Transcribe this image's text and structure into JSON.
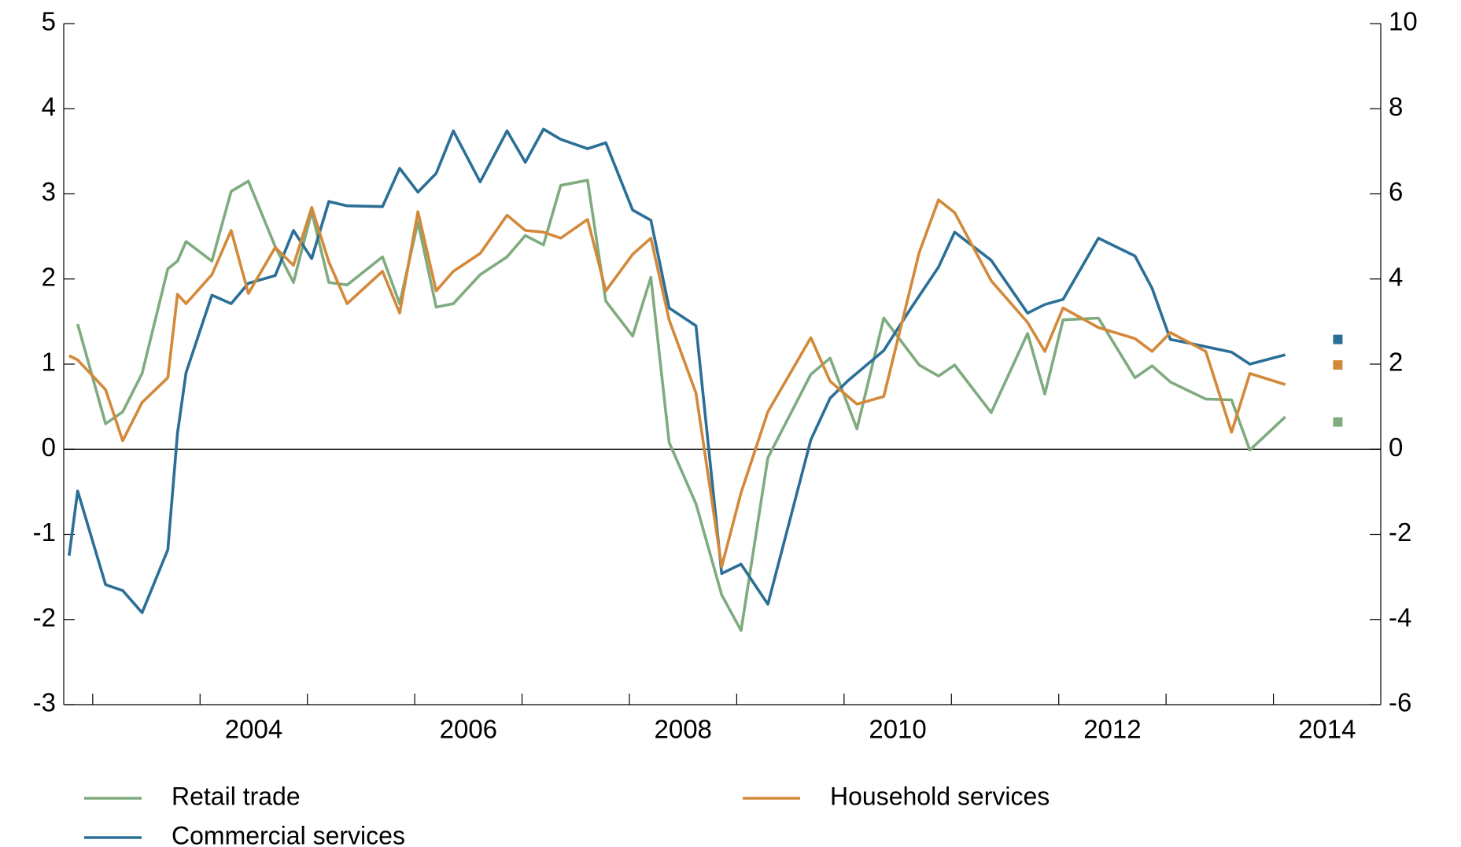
{
  "chart_data": {
    "type": "line",
    "xlim": [
      2002.73,
      2015
    ],
    "xticks": [
      2003,
      2004,
      2005,
      2006,
      2007,
      2008,
      2009,
      2010,
      2011,
      2012,
      2013,
      2014
    ],
    "xlabels": [
      {
        "value": 2004.5,
        "label": "2004"
      },
      {
        "value": 2006.5,
        "label": "2006"
      },
      {
        "value": 2008.5,
        "label": "2008"
      },
      {
        "value": 2010.5,
        "label": "2010"
      },
      {
        "value": 2012.5,
        "label": "2012"
      },
      {
        "value": 2014.5,
        "label": "2014"
      }
    ],
    "ylim": [
      -3,
      5
    ],
    "yticks": [
      -3,
      -2,
      -1,
      0,
      1,
      2,
      3,
      4,
      5
    ],
    "y2lim": [
      -6,
      10
    ],
    "y2ticks": [
      -6,
      -4,
      -2,
      0,
      2,
      4,
      6,
      8,
      10
    ],
    "series": [
      {
        "name": "Retail trade",
        "color": "#7fab7f",
        "x": [
          2002.86,
          2003.12,
          2003.28,
          2003.46,
          2003.7,
          2003.79,
          2003.87,
          2004.11,
          2004.29,
          2004.45,
          2004.7,
          2004.87,
          2005.04,
          2005.2,
          2005.37,
          2005.7,
          2005.86,
          2006.03,
          2006.2,
          2006.36,
          2006.61,
          2006.86,
          2007.03,
          2007.2,
          2007.36,
          2007.61,
          2007.78,
          2008.03,
          2008.2,
          2008.37,
          2008.62,
          2008.86,
          2009.04,
          2009.29,
          2009.69,
          2009.87,
          2010.12,
          2010.37,
          2010.7,
          2010.88,
          2011.03,
          2011.37,
          2011.71,
          2011.87,
          2012.04,
          2012.37,
          2012.71,
          2012.87,
          2013.04,
          2013.37,
          2013.61,
          2013.78,
          2014.11
        ],
        "values": [
          1.47,
          0.3,
          0.44,
          0.89,
          2.12,
          2.21,
          2.44,
          2.21,
          3.03,
          3.15,
          2.38,
          1.96,
          2.79,
          1.96,
          1.93,
          2.26,
          1.71,
          2.67,
          1.67,
          1.71,
          2.05,
          2.26,
          2.51,
          2.4,
          3.1,
          3.16,
          1.74,
          1.33,
          2.02,
          0.08,
          -0.64,
          -1.71,
          -2.13,
          -0.1,
          0.88,
          1.07,
          0.24,
          1.54,
          0.99,
          0.86,
          0.99,
          0.43,
          1.36,
          0.65,
          1.52,
          1.54,
          0.84,
          0.98,
          0.79,
          0.59,
          0.58,
          -0.01,
          0.38
        ]
      },
      {
        "name": "Commercial services",
        "color": "#2b6f97",
        "x": [
          2002.78,
          2002.86,
          2003.12,
          2003.28,
          2003.46,
          2003.7,
          2003.79,
          2003.87,
          2004.11,
          2004.29,
          2004.45,
          2004.7,
          2004.87,
          2005.04,
          2005.2,
          2005.37,
          2005.7,
          2005.86,
          2006.03,
          2006.2,
          2006.36,
          2006.61,
          2006.86,
          2007.03,
          2007.2,
          2007.36,
          2007.61,
          2007.78,
          2008.03,
          2008.2,
          2008.37,
          2008.62,
          2008.86,
          2009.04,
          2009.29,
          2009.69,
          2009.87,
          2010.04,
          2010.37,
          2010.62,
          2010.88,
          2011.03,
          2011.37,
          2011.71,
          2011.87,
          2012.04,
          2012.37,
          2012.71,
          2012.87,
          2013.04,
          2013.2,
          2013.61,
          2013.78,
          2014.11
        ],
        "values": [
          -1.25,
          -0.49,
          -1.59,
          -1.66,
          -1.92,
          -1.18,
          0.19,
          0.9,
          1.81,
          1.71,
          1.95,
          2.04,
          2.57,
          2.24,
          2.91,
          2.86,
          2.85,
          3.3,
          3.02,
          3.24,
          3.74,
          3.14,
          3.74,
          3.37,
          3.76,
          3.64,
          3.53,
          3.6,
          2.81,
          2.69,
          1.66,
          1.45,
          -1.46,
          -1.35,
          -1.82,
          0.11,
          0.6,
          0.81,
          1.16,
          1.65,
          2.14,
          2.55,
          2.22,
          1.6,
          1.7,
          1.76,
          2.48,
          2.27,
          1.89,
          1.29,
          1.25,
          1.14,
          1.0,
          1.11
        ]
      },
      {
        "name": "Household services",
        "color": "#d3893a",
        "x": [
          2002.78,
          2002.86,
          2003.12,
          2003.28,
          2003.46,
          2003.7,
          2003.79,
          2003.87,
          2004.11,
          2004.29,
          2004.45,
          2004.7,
          2004.87,
          2005.04,
          2005.2,
          2005.37,
          2005.7,
          2005.86,
          2006.03,
          2006.2,
          2006.36,
          2006.61,
          2006.86,
          2007.03,
          2007.2,
          2007.36,
          2007.61,
          2007.78,
          2008.03,
          2008.2,
          2008.37,
          2008.62,
          2008.86,
          2009.04,
          2009.29,
          2009.69,
          2009.87,
          2010.12,
          2010.37,
          2010.7,
          2010.88,
          2011.03,
          2011.37,
          2011.71,
          2011.87,
          2012.04,
          2012.37,
          2012.71,
          2012.87,
          2013.04,
          2013.37,
          2013.61,
          2013.78,
          2014.11
        ],
        "values": [
          1.1,
          1.05,
          0.7,
          0.1,
          0.55,
          0.84,
          1.82,
          1.71,
          2.05,
          2.57,
          1.83,
          2.37,
          2.16,
          2.84,
          2.2,
          1.71,
          2.09,
          1.6,
          2.79,
          1.86,
          2.09,
          2.3,
          2.75,
          2.57,
          2.55,
          2.48,
          2.7,
          1.86,
          2.29,
          2.48,
          1.52,
          0.66,
          -1.38,
          -0.51,
          0.44,
          1.31,
          0.8,
          0.53,
          0.62,
          2.31,
          2.93,
          2.78,
          1.98,
          1.49,
          1.15,
          1.66,
          1.43,
          1.3,
          1.15,
          1.37,
          1.15,
          0.2,
          0.89,
          0.76
        ]
      }
    ],
    "markers": [
      {
        "color": "#2b6f97",
        "x": 2014.6,
        "value": 1.29
      },
      {
        "color": "#d3893a",
        "x": 2014.6,
        "value": 0.99
      },
      {
        "color": "#7fab7f",
        "x": 2014.6,
        "value": 0.32
      }
    ]
  }
}
